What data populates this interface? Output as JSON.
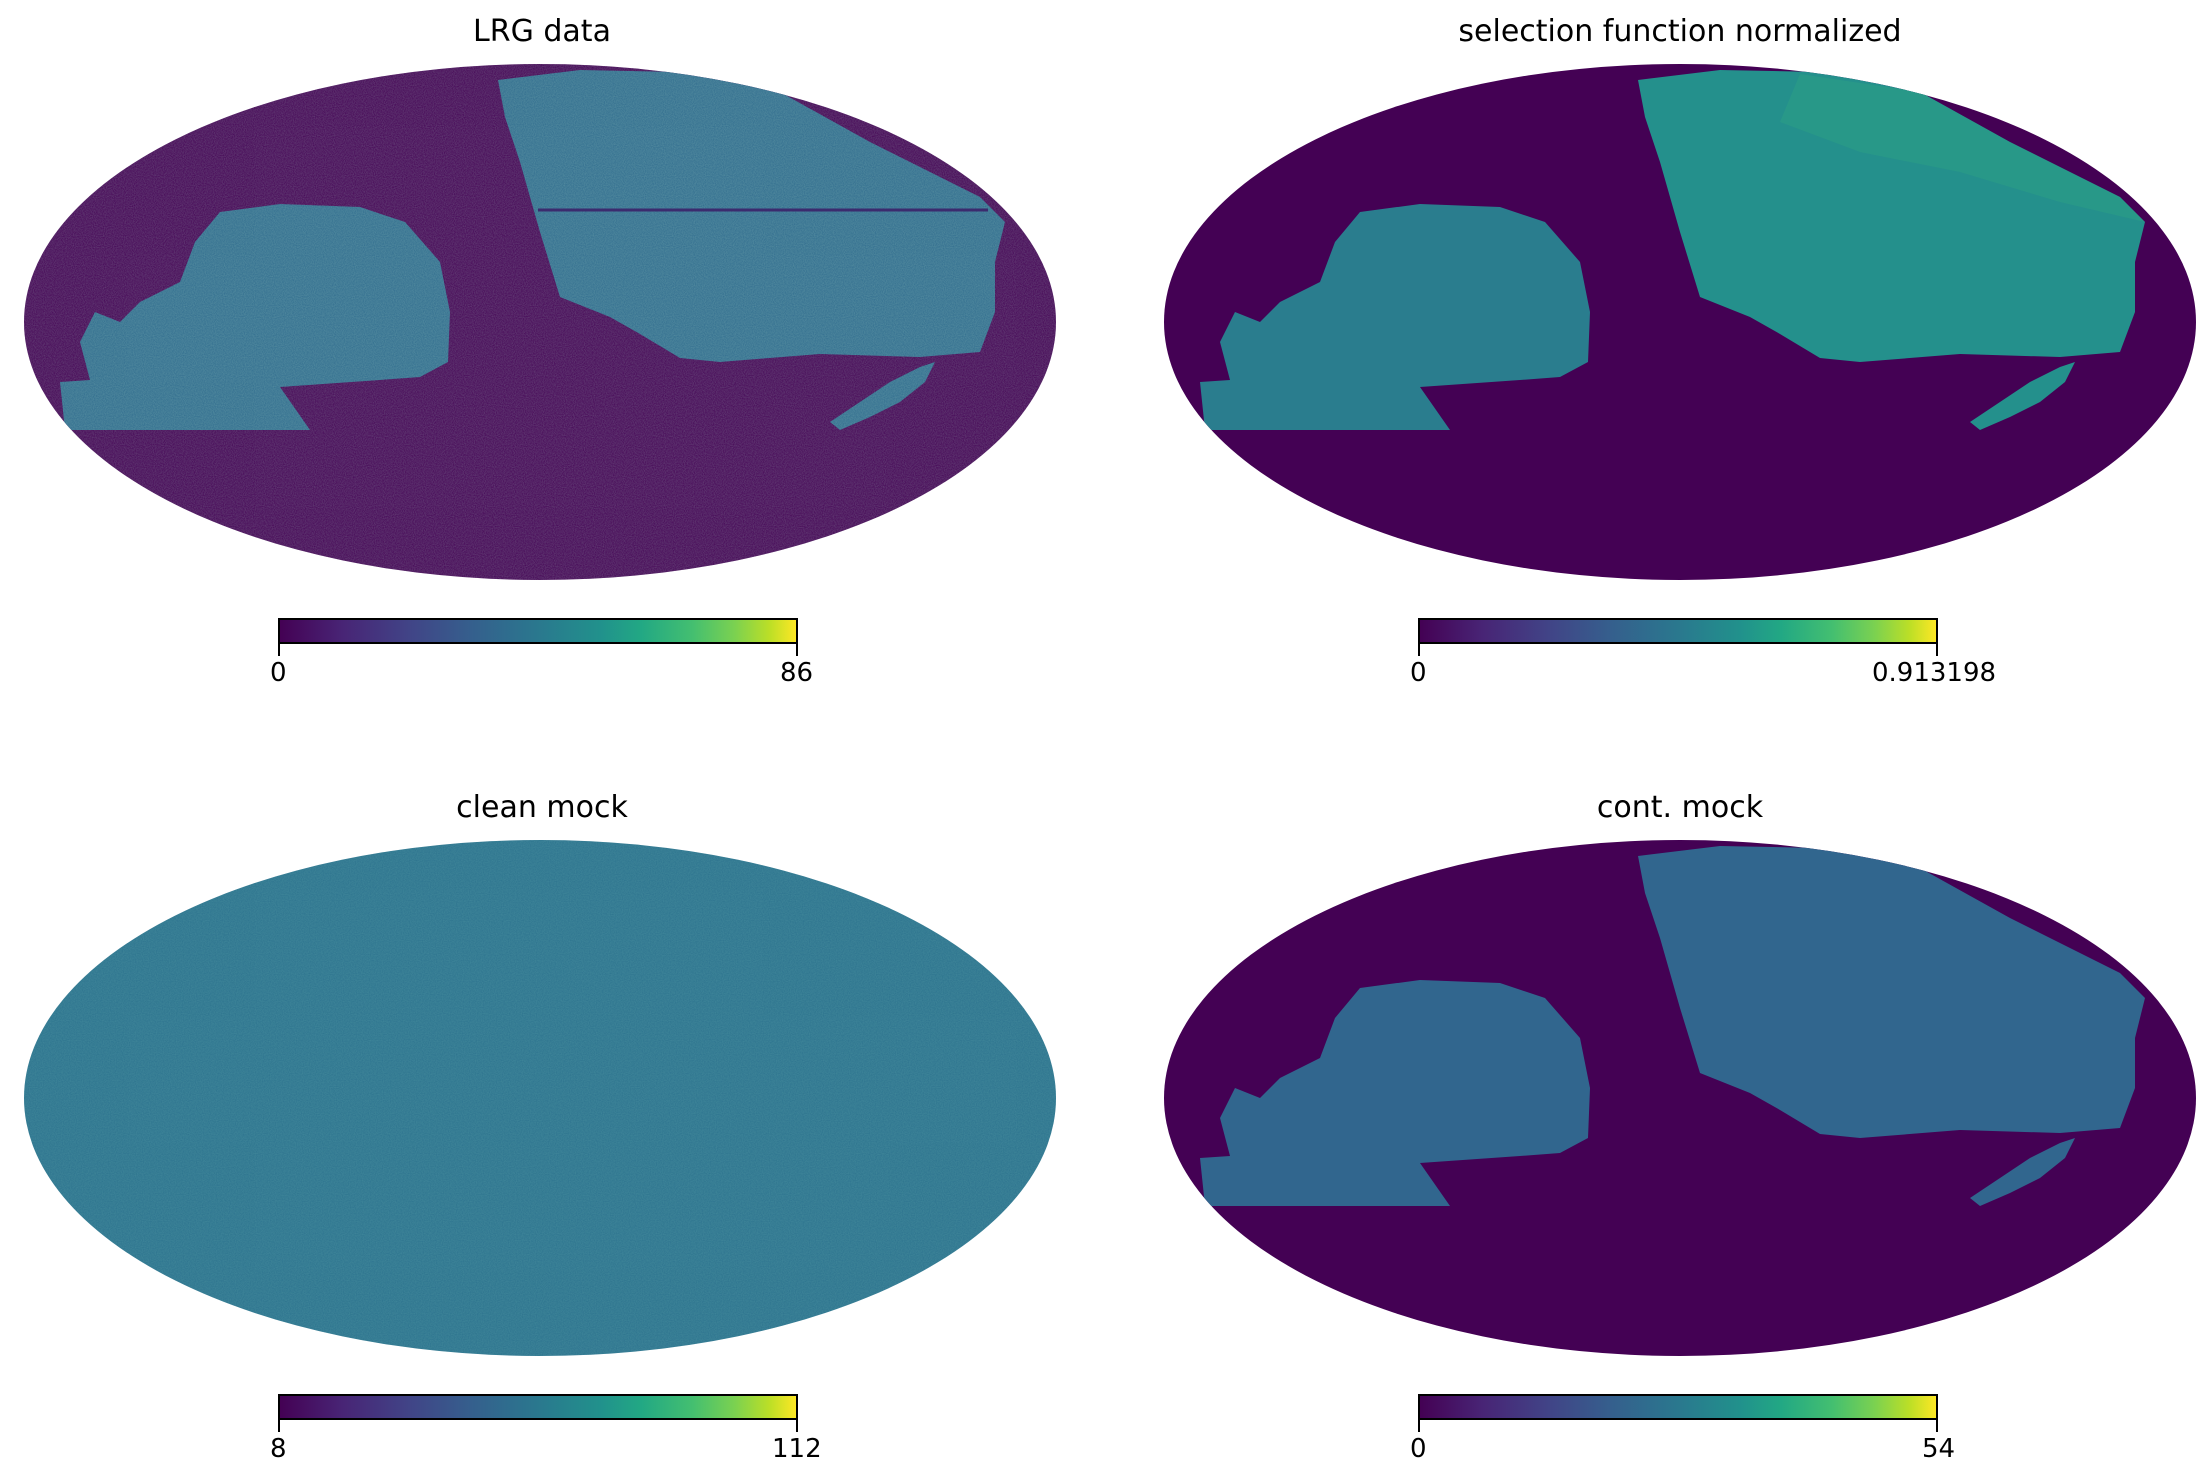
{
  "panels": [
    {
      "title": "LRG data",
      "colorbar": {
        "min": "0",
        "max": "86"
      },
      "coverage": "footprint"
    },
    {
      "title": "selection function normalized",
      "colorbar": {
        "min": "0",
        "max": "0.913198"
      },
      "coverage": "footprint"
    },
    {
      "title": "clean mock",
      "colorbar": {
        "min": "8",
        "max": "112"
      },
      "coverage": "full-sky"
    },
    {
      "title": "cont. mock",
      "colorbar": {
        "min": "0",
        "max": "54"
      },
      "coverage": "footprint"
    }
  ],
  "colors": {
    "background_dark": "#440154",
    "footprint_data": "#2f6b8e",
    "footprint_selection": "#24908c",
    "full_sky": "#2c728e"
  },
  "colormap": "viridis"
}
